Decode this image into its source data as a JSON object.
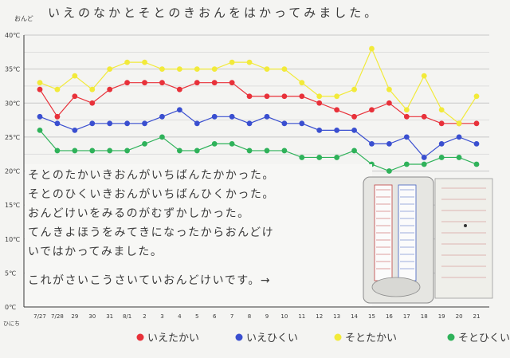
{
  "title": "いえのなかとそとのきおんをはかってみました。",
  "y_unit_label": "おんど",
  "x_unit_label": "ひにち",
  "colors": {
    "red": "#e8313a",
    "blue": "#3a4fd0",
    "yellow": "#f2ea3a",
    "green": "#2fb25a",
    "grid": "#c8c8c8",
    "ink": "#3a3a3a"
  },
  "notes": [
    "そとのたかいきおんがいちばんたかかった。",
    "そとのひくいきおんがいちばんひくかった。",
    "おんどけいをみるのがむずかしかった。",
    "てんきよほうをみてきになったからおんどけ",
    "いではかってみました。",
    "これがさいこうさいていおんどけいです。→"
  ],
  "chart_data": {
    "type": "line",
    "y_ticks": [
      "40℃",
      "35℃",
      "30℃",
      "25℃",
      "20℃",
      "15℃",
      "10℃",
      "5℃",
      "0℃"
    ],
    "ylim": [
      0,
      40
    ],
    "x": [
      "7/27",
      "7/28",
      "29",
      "30",
      "31",
      "8/1",
      "2",
      "3",
      "4",
      "5",
      "6",
      "7",
      "8",
      "9",
      "10",
      "11",
      "12",
      "13",
      "14",
      "15",
      "16",
      "17",
      "18",
      "19",
      "20",
      "21"
    ],
    "series": [
      {
        "name": "いえたかい",
        "color": "#e8313a",
        "values": [
          32,
          28,
          31,
          30,
          32,
          33,
          33,
          33,
          32,
          33,
          33,
          33,
          31,
          31,
          31,
          31,
          30,
          29,
          28,
          29,
          30,
          28,
          28,
          27,
          27,
          27
        ]
      },
      {
        "name": "いえひくい",
        "color": "#3a4fd0",
        "values": [
          28,
          27,
          26,
          27,
          27,
          27,
          27,
          28,
          29,
          27,
          28,
          28,
          27,
          28,
          27,
          27,
          26,
          26,
          26,
          24,
          24,
          25,
          22,
          24,
          25,
          24
        ]
      },
      {
        "name": "そとたかい",
        "color": "#f2ea3a",
        "values": [
          33,
          32,
          34,
          32,
          35,
          36,
          36,
          35,
          35,
          35,
          35,
          36,
          36,
          35,
          35,
          33,
          31,
          31,
          32,
          38,
          32,
          29,
          34,
          29,
          27,
          31
        ]
      },
      {
        "name": "そとひくい",
        "color": "#2fb25a",
        "values": [
          26,
          23,
          23,
          23,
          23,
          23,
          24,
          25,
          23,
          23,
          24,
          24,
          23,
          23,
          23,
          22,
          22,
          22,
          23,
          21,
          20,
          21,
          21,
          22,
          22,
          21
        ]
      }
    ]
  }
}
